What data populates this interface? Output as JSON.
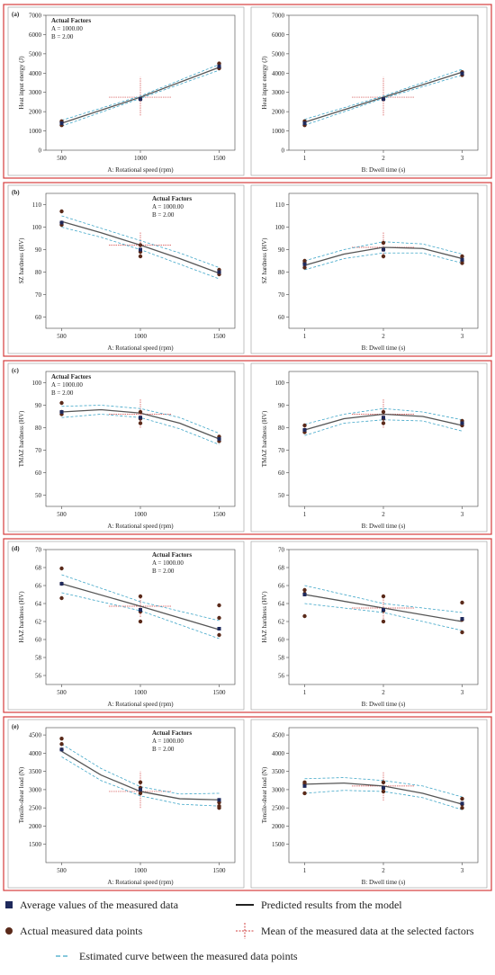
{
  "chart_data": [
    {
      "type": "line",
      "panel_label": "(a)",
      "annotation": [
        "Actual Factors",
        "A = 1000.00",
        "B = 2.00"
      ],
      "x_label": "A: Rotational speed (rpm)",
      "y_label": "Heat input energy (J)",
      "xlim": [
        400,
        1600
      ],
      "xticks": [
        500,
        1000,
        1500
      ],
      "ylim": [
        0,
        7000
      ],
      "yticks": [
        0,
        1000,
        2000,
        3000,
        4000,
        5000,
        6000,
        7000
      ],
      "x": [
        500,
        1000,
        1500
      ],
      "predicted": [
        1400,
        2750,
        4300
      ],
      "upper": [
        1550,
        2810,
        4450
      ],
      "lower": [
        1250,
        2690,
        4150
      ],
      "measured": {
        "x": [
          500,
          500,
          500,
          1000,
          1500,
          1500,
          1500
        ],
        "y": [
          1300,
          1450,
          1500,
          2650,
          4250,
          4300,
          4500
        ]
      },
      "average": {
        "x": [
          500,
          1000,
          1500
        ],
        "y": [
          1400,
          2650,
          4350
        ]
      },
      "mean": {
        "x": 1000,
        "y": 2750,
        "x_range": [
          800,
          1200
        ],
        "y_range": [
          1800,
          3800
        ]
      }
    },
    {
      "type": "line",
      "x_label": "B: Dwell time (s)",
      "y_label": "Heat input energy (J)",
      "xlim": [
        0.8,
        3.2
      ],
      "xticks": [
        1,
        2,
        3
      ],
      "ylim": [
        0,
        7000
      ],
      "yticks": [
        0,
        1000,
        2000,
        3000,
        4000,
        5000,
        6000,
        7000
      ],
      "x": [
        1,
        2,
        3
      ],
      "predicted": [
        1450,
        2750,
        4050
      ],
      "upper": [
        1600,
        2810,
        4200
      ],
      "lower": [
        1300,
        2690,
        3900
      ],
      "measured": {
        "x": [
          1,
          1,
          2,
          3,
          3
        ],
        "y": [
          1300,
          1500,
          2650,
          3900,
          4050
        ]
      },
      "average": {
        "x": [
          1,
          2,
          3
        ],
        "y": [
          1400,
          2650,
          3980
        ]
      },
      "mean": {
        "x": 2,
        "y": 2750,
        "x_range": [
          1.6,
          2.4
        ],
        "y_range": [
          1800,
          3800
        ]
      }
    },
    {
      "type": "line",
      "panel_label": "(b)",
      "annotation": [
        "Actual Factors",
        "A = 1000.00",
        "B = 2.00"
      ],
      "x_label": "A: Rotational speed (rpm)",
      "y_label": "SZ hardness (HV)",
      "xlim": [
        400,
        1600
      ],
      "xticks": [
        500,
        1000,
        1500
      ],
      "ylim": [
        55,
        115
      ],
      "yticks": [
        60,
        70,
        80,
        90,
        100,
        110
      ],
      "x": [
        500,
        750,
        1000,
        1250,
        1500
      ],
      "predicted": [
        102.5,
        97.5,
        92,
        86,
        79.5
      ],
      "upper": [
        105,
        99.5,
        94,
        88.5,
        82
      ],
      "lower": [
        100,
        95.5,
        90,
        83.5,
        77
      ],
      "measured": {
        "x": [
          500,
          500,
          500,
          1000,
          1000,
          1000,
          1500,
          1500,
          1500
        ],
        "y": [
          101,
          102,
          107,
          87,
          89,
          92,
          79,
          80,
          81
        ]
      },
      "average": {
        "x": [
          500,
          1000,
          1500
        ],
        "y": [
          102,
          90,
          80
        ]
      },
      "mean": {
        "x": 1000,
        "y": 92,
        "x_range": [
          800,
          1200
        ],
        "y_range": [
          87,
          98
        ]
      }
    },
    {
      "type": "line",
      "x_label": "B: Dwell time (s)",
      "y_label": "SZ hardness (HV)",
      "xlim": [
        0.8,
        3.2
      ],
      "xticks": [
        1,
        2,
        3
      ],
      "ylim": [
        55,
        115
      ],
      "yticks": [
        60,
        70,
        80,
        90,
        100,
        110
      ],
      "x": [
        1,
        1.5,
        2,
        2.5,
        3
      ],
      "predicted": [
        83,
        88,
        91,
        90.5,
        86
      ],
      "upper": [
        85,
        90,
        93.5,
        92.5,
        88
      ],
      "lower": [
        81,
        86,
        88.5,
        88.5,
        84
      ],
      "measured": {
        "x": [
          1,
          1,
          1,
          2,
          2,
          2,
          3,
          3,
          3
        ],
        "y": [
          82,
          84,
          85,
          87,
          90,
          93,
          84,
          85,
          87
        ]
      },
      "average": {
        "x": [
          1,
          2,
          3
        ],
        "y": [
          83.5,
          90,
          85.5
        ]
      },
      "mean": {
        "x": 2,
        "y": 91,
        "x_range": [
          1.6,
          2.4
        ],
        "y_range": [
          86,
          98
        ]
      }
    },
    {
      "type": "line",
      "panel_label": "(c)",
      "annotation": [
        "Actual Factors",
        "A = 1000.00",
        "B = 2.00"
      ],
      "x_label": "A: Rotational speed (rpm)",
      "y_label": "TMAZ hardness (HV)",
      "xlim": [
        400,
        1600
      ],
      "xticks": [
        500,
        1000,
        1500
      ],
      "ylim": [
        45,
        105
      ],
      "yticks": [
        50,
        60,
        70,
        80,
        90,
        100
      ],
      "x": [
        500,
        750,
        1000,
        1250,
        1500
      ],
      "predicted": [
        87,
        88,
        86.5,
        82,
        75
      ],
      "upper": [
        89.5,
        90,
        88.5,
        84.5,
        77.5
      ],
      "lower": [
        84.5,
        86,
        84.5,
        79.5,
        72.5
      ],
      "measured": {
        "x": [
          500,
          500,
          500,
          1000,
          1000,
          1000,
          1500,
          1500,
          1500
        ],
        "y": [
          86,
          87,
          91,
          82,
          84,
          87,
          74,
          75,
          76
        ]
      },
      "average": {
        "x": [
          500,
          1000,
          1500
        ],
        "y": [
          87,
          84.5,
          75
        ]
      },
      "mean": {
        "x": 1000,
        "y": 86,
        "x_range": [
          800,
          1200
        ],
        "y_range": [
          80,
          93
        ]
      }
    },
    {
      "type": "line",
      "x_label": "B: Dwell time (s)",
      "y_label": "TMAZ hardness (HV)",
      "xlim": [
        0.8,
        3.2
      ],
      "xticks": [
        1,
        2,
        3
      ],
      "ylim": [
        45,
        105
      ],
      "yticks": [
        50,
        60,
        70,
        80,
        90,
        100
      ],
      "x": [
        1,
        1.5,
        2,
        2.5,
        3
      ],
      "predicted": [
        79,
        84,
        86,
        85,
        81
      ],
      "upper": [
        81.5,
        86,
        88.5,
        87,
        83.5
      ],
      "lower": [
        76.5,
        82,
        83.5,
        83,
        78.5
      ],
      "measured": {
        "x": [
          1,
          1,
          1,
          2,
          2,
          2,
          3,
          3,
          3
        ],
        "y": [
          78,
          79,
          81,
          82,
          84,
          87,
          81,
          82,
          83
        ]
      },
      "average": {
        "x": [
          1,
          2,
          3
        ],
        "y": [
          79,
          84.5,
          82
        ]
      },
      "mean": {
        "x": 2,
        "y": 86,
        "x_range": [
          1.6,
          2.4
        ],
        "y_range": [
          80,
          93
        ]
      }
    },
    {
      "type": "line",
      "panel_label": "(d)",
      "annotation": [
        "Actual Factors",
        "A = 1000.00",
        "B = 2.00"
      ],
      "x_label": "A: Rotational speed (rpm)",
      "y_label": "HAZ hardness (HV)",
      "xlim": [
        400,
        1600
      ],
      "xticks": [
        500,
        1000,
        1500
      ],
      "ylim": [
        55,
        70
      ],
      "yticks": [
        56,
        58,
        60,
        62,
        64,
        66,
        68,
        70
      ],
      "x": [
        500,
        1000,
        1500
      ],
      "predicted": [
        66.2,
        63.7,
        61.1
      ],
      "upper": [
        67.2,
        64.2,
        62.1
      ],
      "lower": [
        65.2,
        63.2,
        60.1
      ],
      "measured": {
        "x": [
          500,
          500,
          500,
          1000,
          1000,
          1000,
          1500,
          1500,
          1500
        ],
        "y": [
          64.6,
          66.2,
          67.9,
          62,
          63.1,
          64.8,
          60.5,
          62.4,
          63.8
        ]
      },
      "average": {
        "x": [
          500,
          1000,
          1500
        ],
        "y": [
          66.2,
          63.3,
          61.2
        ]
      },
      "mean": {
        "x": 1000,
        "y": 63.7,
        "x_range": [
          800,
          1200
        ],
        "y_range": [
          62.5,
          65
        ]
      }
    },
    {
      "type": "line",
      "x_label": "B: Dwell time (s)",
      "y_label": "HAZ hardness (HV)",
      "xlim": [
        0.8,
        3.2
      ],
      "xticks": [
        1,
        2,
        3
      ],
      "ylim": [
        55,
        70
      ],
      "yticks": [
        56,
        58,
        60,
        62,
        64,
        66,
        68,
        70
      ],
      "x": [
        1,
        2,
        3
      ],
      "predicted": [
        65,
        63.5,
        62
      ],
      "upper": [
        66,
        64,
        63
      ],
      "lower": [
        64,
        63,
        61
      ],
      "measured": {
        "x": [
          1,
          1,
          1,
          2,
          2,
          2,
          3,
          3,
          3
        ],
        "y": [
          62.6,
          65.1,
          65.5,
          62,
          63.2,
          64.8,
          60.8,
          62.2,
          64.1
        ]
      },
      "average": {
        "x": [
          1,
          2,
          3
        ],
        "y": [
          65,
          63.3,
          62.3
        ]
      },
      "mean": {
        "x": 2,
        "y": 63.5,
        "x_range": [
          1.6,
          2.4
        ],
        "y_range": [
          62.3,
          64.8
        ]
      }
    },
    {
      "type": "line",
      "panel_label": "(e)",
      "annotation": [
        "Actual Factors",
        "A = 1000.00",
        "B = 2.00"
      ],
      "x_label": "A: Rotational speed (rpm)",
      "y_label": "Tensile-shear load (N)",
      "xlim": [
        400,
        1600
      ],
      "xticks": [
        500,
        1000,
        1500
      ],
      "ylim": [
        1000,
        4700
      ],
      "yticks": [
        1500,
        2000,
        2500,
        3000,
        3500,
        4000,
        4500
      ],
      "x": [
        500,
        750,
        1000,
        1250,
        1500
      ],
      "predicted": [
        4050,
        3400,
        2950,
        2750,
        2720
      ],
      "upper": [
        4250,
        3580,
        3080,
        2880,
        2900
      ],
      "lower": [
        3900,
        3250,
        2830,
        2600,
        2550
      ],
      "measured": {
        "x": [
          500,
          500,
          500,
          1000,
          1000,
          1000,
          1500,
          1500,
          1500
        ],
        "y": [
          4100,
          4250,
          4400,
          2900,
          3050,
          3200,
          2500,
          2550,
          2650
        ]
      },
      "average": {
        "x": [
          500,
          1000,
          1500
        ],
        "y": [
          4100,
          3000,
          2720
        ]
      },
      "mean": {
        "x": 1000,
        "y": 2950,
        "x_range": [
          800,
          1200
        ],
        "y_range": [
          2500,
          3500
        ]
      }
    },
    {
      "type": "line",
      "x_label": "B: Dwell time (s)",
      "y_label": "Tensile-shear load (N)",
      "xlim": [
        0.8,
        3.2
      ],
      "xticks": [
        1,
        2,
        3
      ],
      "ylim": [
        1000,
        4700
      ],
      "yticks": [
        1500,
        2000,
        2500,
        3000,
        3500,
        4000,
        4500
      ],
      "x": [
        1,
        1.5,
        2,
        2.5,
        3
      ],
      "predicted": [
        3150,
        3180,
        3100,
        2900,
        2600
      ],
      "upper": [
        3300,
        3330,
        3250,
        3100,
        2800
      ],
      "lower": [
        2900,
        2980,
        2950,
        2780,
        2450
      ],
      "measured": {
        "x": [
          1,
          1,
          1,
          2,
          2,
          2,
          3,
          3,
          3
        ],
        "y": [
          2900,
          3150,
          3200,
          2950,
          3050,
          3200,
          2500,
          2600,
          2750
        ]
      },
      "average": {
        "x": [
          1,
          2,
          3
        ],
        "y": [
          3100,
          3050,
          2620
        ]
      },
      "mean": {
        "x": 2,
        "y": 3100,
        "x_range": [
          1.6,
          2.4
        ],
        "y_range": [
          2700,
          3500
        ]
      }
    }
  ],
  "legend": {
    "average": "Average values of the measured data",
    "predicted": "Predicted results from the model",
    "measured": "Actual measured data points",
    "mean": "Mean of the measured data at the selected factors",
    "estimated": "Estimated curve between the measured data points"
  },
  "colors": {
    "average": "#1f2a5c",
    "predicted": "#555555",
    "measured": "#5a2a1a",
    "mean": "#d04040",
    "estimated": "#3fa6c8",
    "frame": "#d63c3c"
  }
}
